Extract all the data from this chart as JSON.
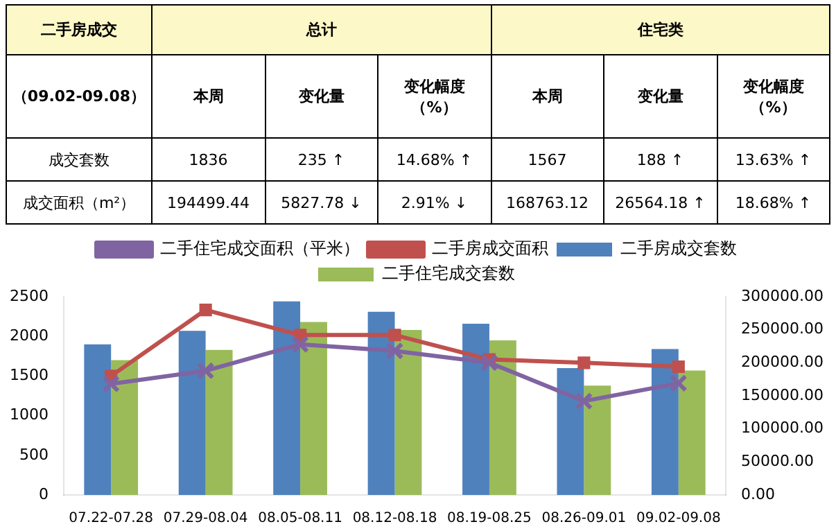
{
  "chart_data": [
    {
      "type": "other",
      "annotations": [
        "二手房成交",
        "总计",
        "住宅类",
        "（09.02-09.08）",
        "本周",
        "变化量",
        "变化幅度（%）",
        "本周",
        "变化量",
        "变化幅度（%）",
        "成交套数",
        "1836",
        "235 ↑",
        "14.68% ↑",
        "1567",
        "188 ↑",
        "13.63% ↑",
        "成交面积（m²）",
        "194499.44",
        "5827.78 ↓",
        "2.91% ↓",
        "168763.12",
        "26564.18 ↑",
        "18.68% ↑"
      ]
    },
    {
      "type": "bar",
      "categories": [
        "07.22-07.28",
        "07.29-08.04",
        "08.05-08.11",
        "08.12-08.18",
        "08.19-08.25",
        "08.26-09.01",
        "09.02-09.08"
      ],
      "series": [
        {
          "name": "二手房成交套数",
          "type": "bar",
          "color": "#4f81bd",
          "values": [
            1900,
            2070,
            2440,
            2310,
            2160,
            1600,
            1840
          ]
        },
        {
          "name": "二手住宅成交套数",
          "type": "bar",
          "color": "#9bbb59",
          "values": [
            1700,
            1830,
            2180,
            2080,
            1950,
            1380,
            1570
          ]
        },
        {
          "name": "二手房成交面积",
          "type": "line",
          "axis": "y2",
          "marker": "square",
          "color": "#c0504d",
          "values": [
            180000,
            280000,
            242000,
            242000,
            205000,
            200000,
            194000
          ]
        },
        {
          "name": "二手住宅成交面积（平米）",
          "type": "line",
          "axis": "y2",
          "marker": "cross",
          "color": "#8064a2",
          "values": [
            168000,
            188000,
            228000,
            218000,
            200000,
            142000,
            169000
          ]
        }
      ],
      "ylim": [
        0,
        2500
      ],
      "yticks": [
        0,
        500,
        1000,
        1500,
        2000,
        2500
      ],
      "y2lim": [
        0,
        300000
      ],
      "y2ticks": [
        {
          "value": 0,
          "label": "0.00"
        },
        {
          "value": 50000,
          "label": "50000.00"
        },
        {
          "value": 100000,
          "label": "100000.00"
        },
        {
          "value": 150000,
          "label": "150000.00"
        },
        {
          "value": 200000,
          "label": "200000.00"
        },
        {
          "value": 250000,
          "label": "250000.00"
        },
        {
          "value": 300000,
          "label": "300000.00"
        }
      ],
      "grid": false,
      "legend": "top"
    }
  ]
}
